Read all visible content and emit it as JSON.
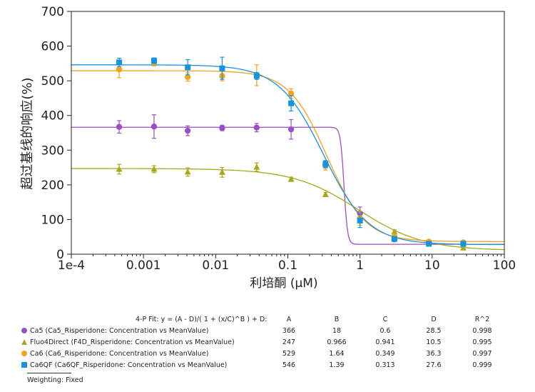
{
  "chart_data": {
    "type": "scatter",
    "xlabel": "利培酮 (µM)",
    "ylabel": "超过基线的响应(%)",
    "xscale": "log",
    "xlim": [
      0.0001,
      100
    ],
    "ylim": [
      0,
      700
    ],
    "x_ticks": [
      {
        "value": 0.0001,
        "label": "1e-4"
      },
      {
        "value": 0.001,
        "label": "0.001"
      },
      {
        "value": 0.01,
        "label": "0.01"
      },
      {
        "value": 0.1,
        "label": "0.1"
      },
      {
        "value": 1,
        "label": "1"
      },
      {
        "value": 10,
        "label": "10"
      },
      {
        "value": 100,
        "label": "100"
      }
    ],
    "y_ticks": [
      {
        "value": 0,
        "label": "0"
      },
      {
        "value": 100,
        "label": "100"
      },
      {
        "value": 200,
        "label": "200"
      },
      {
        "value": 300,
        "label": "300"
      },
      {
        "value": 400,
        "label": "400"
      },
      {
        "value": 500,
        "label": "500"
      },
      {
        "value": 600,
        "label": "600"
      },
      {
        "value": 700,
        "label": "700"
      }
    ],
    "grid": false,
    "series": [
      {
        "name": "Ca5 (Ca5_Risperidone: Concentration vs MeanValue)",
        "marker": "circle",
        "color": "#9b4fc4",
        "fit": {
          "A": 366,
          "B": 18,
          "C": 0.6,
          "D": 28.5,
          "R2": 0.998
        },
        "points": [
          {
            "x": 0.00046,
            "y": 367,
            "err": 18
          },
          {
            "x": 0.0014,
            "y": 368,
            "err": 34
          },
          {
            "x": 0.0041,
            "y": 356,
            "err": 14
          },
          {
            "x": 0.0123,
            "y": 364,
            "err": 8
          },
          {
            "x": 0.037,
            "y": 365,
            "err": 12
          },
          {
            "x": 0.111,
            "y": 360,
            "err": 28
          },
          {
            "x": 0.333,
            "y": 258,
            "err": 10
          },
          {
            "x": 1,
            "y": 118,
            "err": 18
          },
          {
            "x": 3,
            "y": 43,
            "err": 6
          },
          {
            "x": 9,
            "y": 34,
            "err": 5
          },
          {
            "x": 27,
            "y": 30,
            "err": 4
          }
        ]
      },
      {
        "name": "Fluo4Direct (F4D_Risperidone: Concentration vs MeanValue)",
        "marker": "triangle",
        "color": "#a7a81b",
        "fit": {
          "A": 247,
          "B": 0.966,
          "C": 0.941,
          "D": 10.5,
          "R2": 0.995
        },
        "points": [
          {
            "x": 0.00046,
            "y": 245,
            "err": 14
          },
          {
            "x": 0.0014,
            "y": 245,
            "err": 10
          },
          {
            "x": 0.0041,
            "y": 237,
            "err": 12
          },
          {
            "x": 0.0123,
            "y": 236,
            "err": 14
          },
          {
            "x": 0.037,
            "y": 251,
            "err": 12
          },
          {
            "x": 0.111,
            "y": 216,
            "err": 6
          },
          {
            "x": 0.333,
            "y": 172,
            "err": 6
          },
          {
            "x": 1,
            "y": 108,
            "err": 10
          },
          {
            "x": 3,
            "y": 64,
            "err": 6
          },
          {
            "x": 9,
            "y": 36,
            "err": 4
          },
          {
            "x": 27,
            "y": 18,
            "err": 4
          }
        ]
      },
      {
        "name": "Ca6 (Ca6_Risperidone: Concentration vs MeanValue)",
        "marker": "circle",
        "color": "#f4a11c",
        "fit": {
          "A": 529,
          "B": 1.64,
          "C": 0.349,
          "D": 36.3,
          "R2": 0.997
        },
        "points": [
          {
            "x": 0.00046,
            "y": 533,
            "err": 24
          },
          {
            "x": 0.0014,
            "y": 553,
            "err": 10
          },
          {
            "x": 0.0041,
            "y": 511,
            "err": 12
          },
          {
            "x": 0.0123,
            "y": 514,
            "err": 14
          },
          {
            "x": 0.037,
            "y": 516,
            "err": 30
          },
          {
            "x": 0.111,
            "y": 463,
            "err": 14
          },
          {
            "x": 0.333,
            "y": 255,
            "err": 12
          },
          {
            "x": 1,
            "y": 104,
            "err": 20
          },
          {
            "x": 3,
            "y": 50,
            "err": 8
          },
          {
            "x": 9,
            "y": 36,
            "err": 4
          },
          {
            "x": 27,
            "y": 34,
            "err": 4
          }
        ]
      },
      {
        "name": "Ca6QF (Ca6QF_Risperidone: Concentration vs MeanValue)",
        "marker": "square",
        "color": "#1592e0",
        "fit": {
          "A": 546,
          "B": 1.39,
          "C": 0.313,
          "D": 27.6,
          "R2": 0.999
        },
        "points": [
          {
            "x": 0.00046,
            "y": 553,
            "err": 12
          },
          {
            "x": 0.0014,
            "y": 558,
            "err": 8
          },
          {
            "x": 0.0041,
            "y": 539,
            "err": 22
          },
          {
            "x": 0.0123,
            "y": 536,
            "err": 32
          },
          {
            "x": 0.037,
            "y": 514,
            "err": 10
          },
          {
            "x": 0.111,
            "y": 435,
            "err": 22
          },
          {
            "x": 0.333,
            "y": 260,
            "err": 10
          },
          {
            "x": 1,
            "y": 97,
            "err": 20
          },
          {
            "x": 3,
            "y": 44,
            "err": 6
          },
          {
            "x": 9,
            "y": 30,
            "err": 4
          },
          {
            "x": 27,
            "y": 30,
            "err": 4
          }
        ]
      }
    ]
  },
  "fit_table": {
    "header": "4-P Fit: y = (A - D)/( 1 + (x/C)^B ) + D:",
    "columns": [
      "A",
      "B",
      "C",
      "D",
      "R^2"
    ],
    "rows": [
      {
        "label": "Ca5 (Ca5_Risperidone: Concentration vs MeanValue)",
        "A": "366",
        "B": "18",
        "C": "0.6",
        "D": "28.5",
        "R2": "0.998"
      },
      {
        "label": "Fluo4Direct (F4D_Risperidone: Concentration vs MeanValue)",
        "A": "247",
        "B": "0.966",
        "C": "0.941",
        "D": "10.5",
        "R2": "0.995"
      },
      {
        "label": "Ca6 (Ca6_Risperidone: Concentration vs MeanValue)",
        "A": "529",
        "B": "1.64",
        "C": "0.349",
        "D": "36.3",
        "R2": "0.997"
      },
      {
        "label": "Ca6QF (Ca6QF_Risperidone: Concentration vs MeanValue)",
        "A": "546",
        "B": "1.39",
        "C": "0.313",
        "D": "27.6",
        "R2": "0.999"
      }
    ]
  },
  "footer": {
    "weighting": "Weighting: Fixed"
  }
}
